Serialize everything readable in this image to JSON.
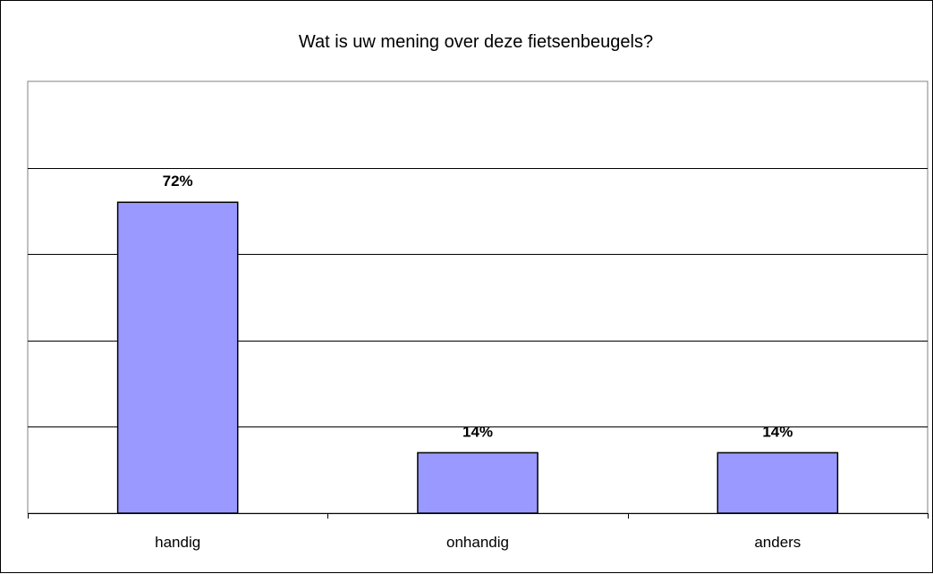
{
  "chart_data": {
    "type": "bar",
    "title": "Wat is uw mening over deze fietsenbeugels?",
    "categories": [
      "handig",
      "onhandig",
      "anders"
    ],
    "values": [
      72,
      14,
      14
    ],
    "value_labels": [
      "72%",
      "14%",
      "14%"
    ],
    "unit": "%",
    "ylim": [
      0,
      100
    ],
    "y_gridlines": [
      20,
      40,
      60,
      80,
      100
    ],
    "grid": true,
    "legend": "none",
    "bar_color": "#9999ff",
    "bar_outline": "#000000",
    "xlabel": "",
    "ylabel": ""
  }
}
